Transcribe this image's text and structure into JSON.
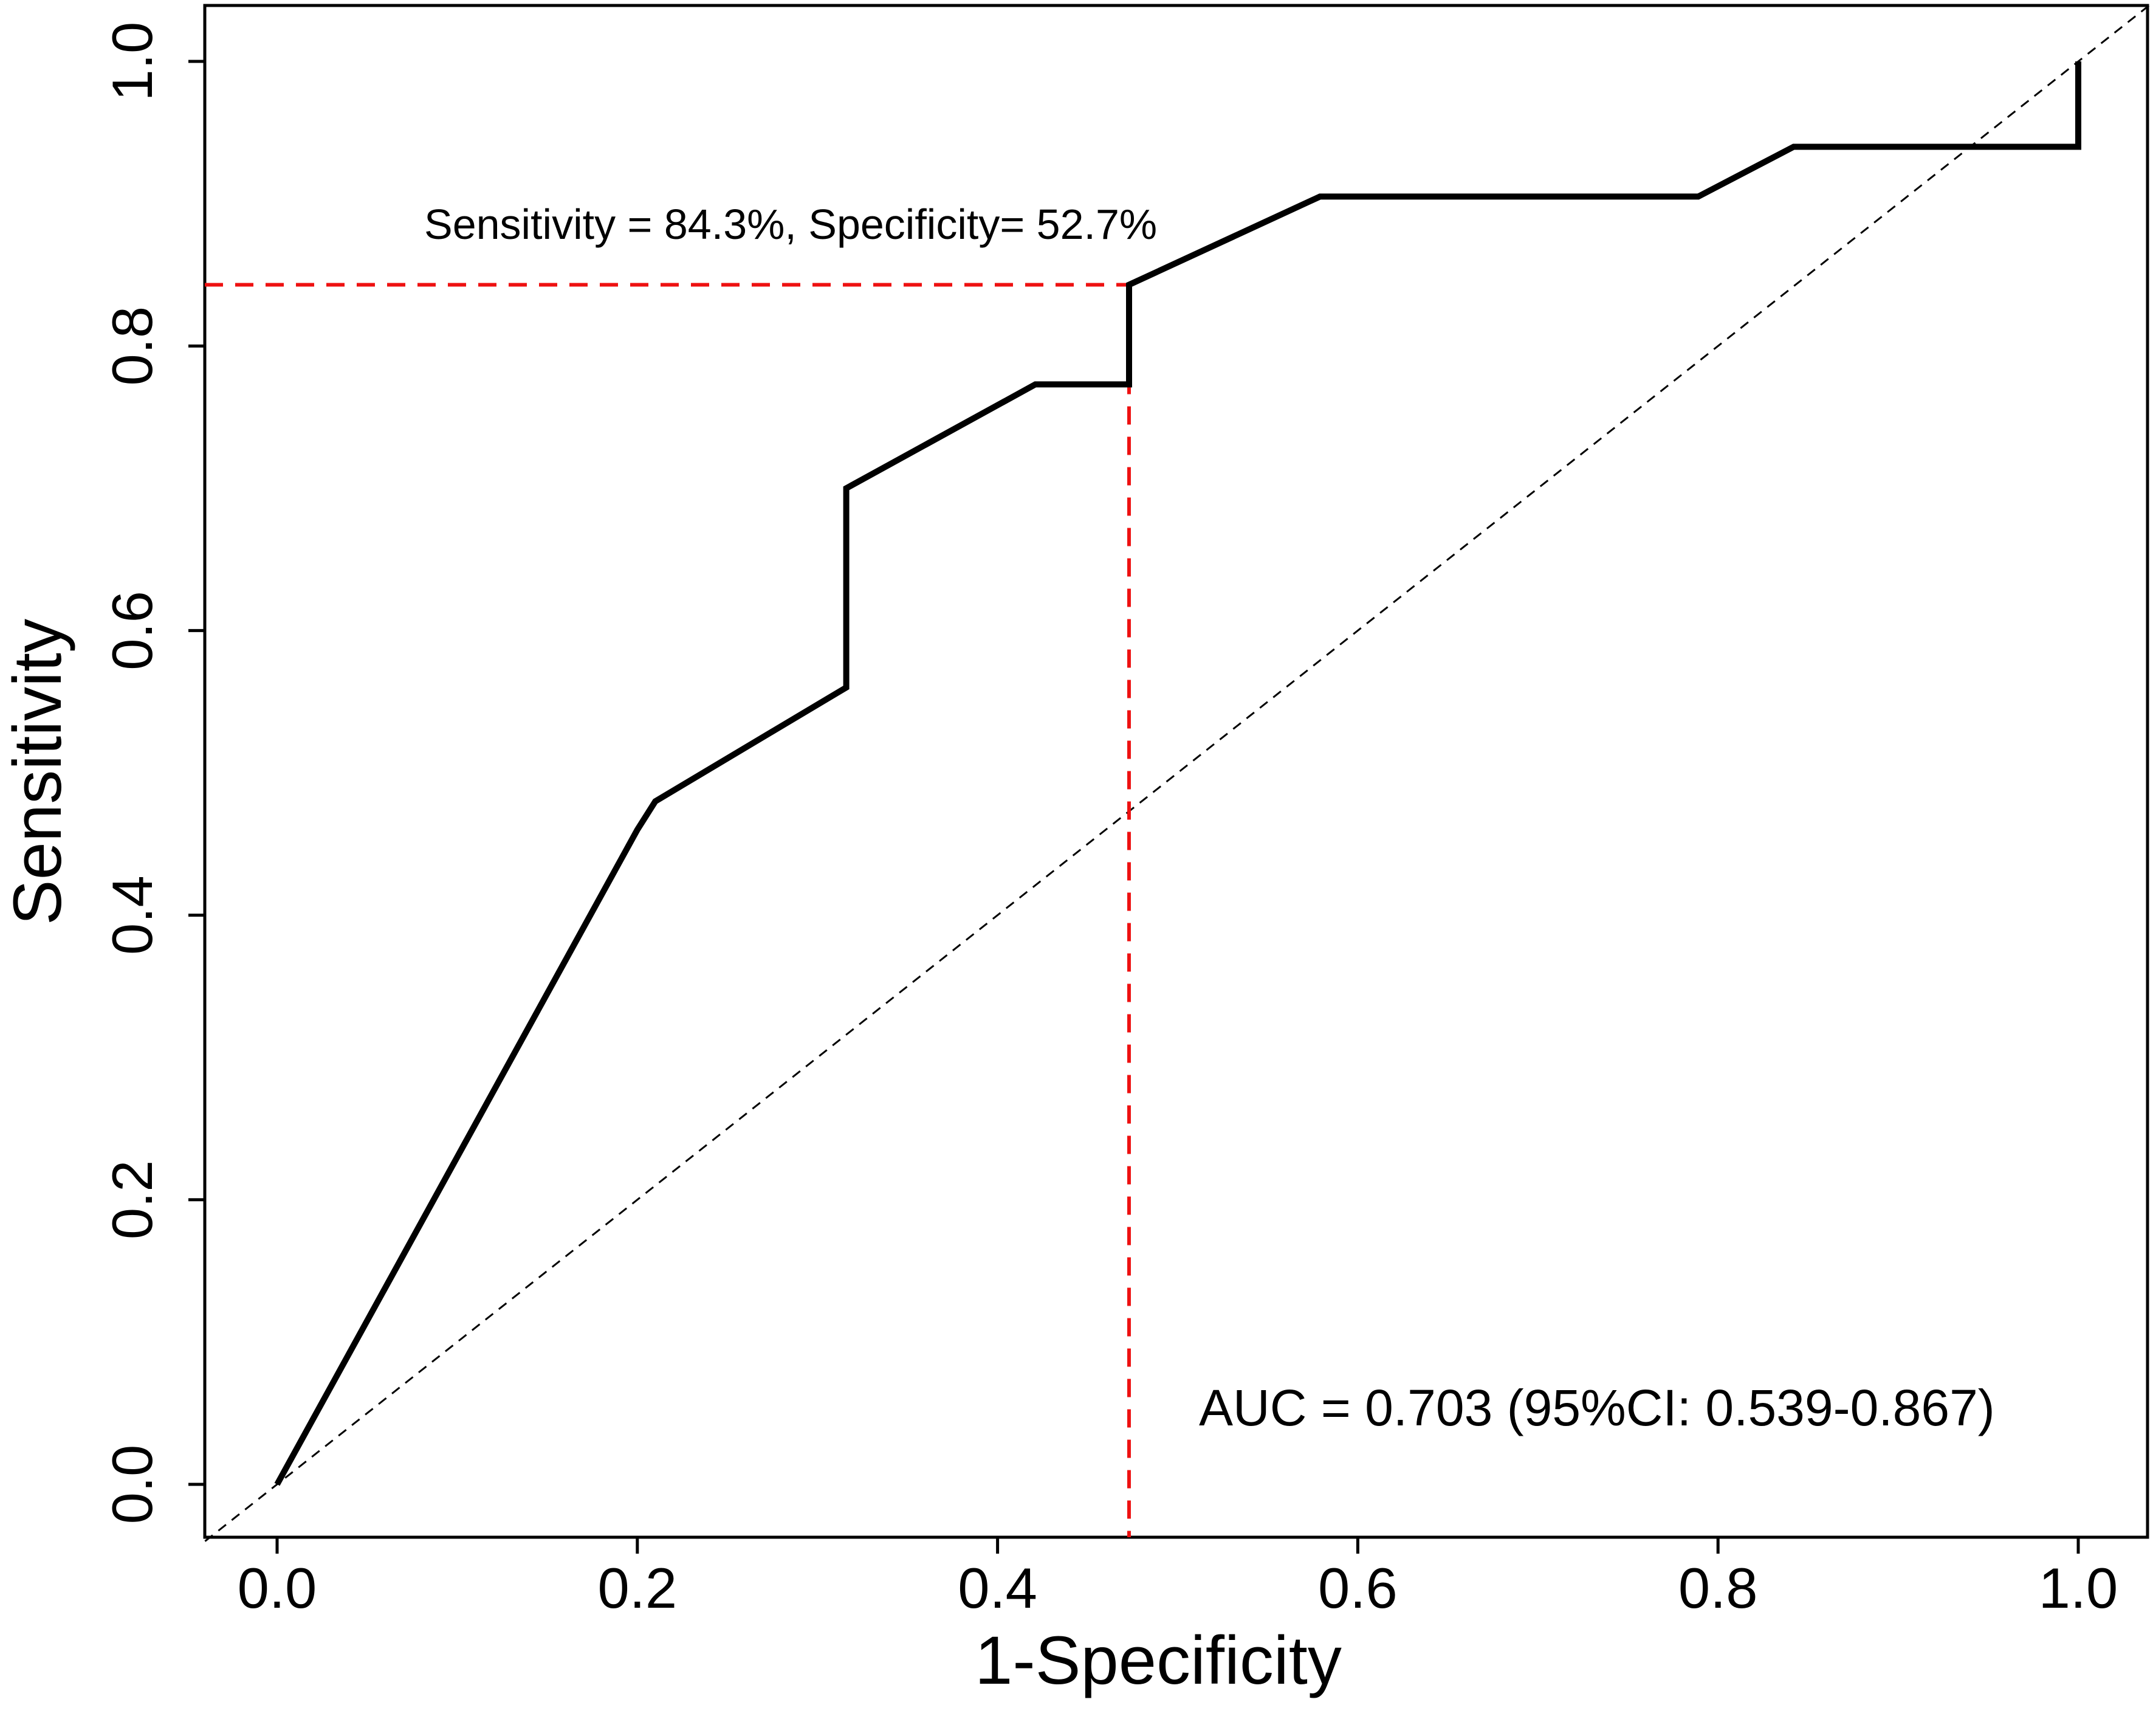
{
  "chart_data": {
    "type": "line",
    "title": "",
    "xlabel": "1-Specificity",
    "ylabel": "Sensitivity",
    "xlim": [
      -0.04,
      1.04
    ],
    "ylim": [
      -0.04,
      1.04
    ],
    "xticks": [
      0.0,
      0.2,
      0.4,
      0.6,
      0.8,
      1.0
    ],
    "yticks": [
      0.0,
      0.2,
      0.4,
      0.6,
      0.8,
      1.0
    ],
    "xtick_labels": [
      "0.0",
      "0.2",
      "0.4",
      "0.6",
      "0.8",
      "1.0"
    ],
    "ytick_labels": [
      "0.0",
      "0.2",
      "0.4",
      "0.6",
      "0.8",
      "1.0"
    ],
    "grid": false,
    "series": [
      {
        "name": "ROC curve",
        "color": "#000000",
        "style": "solid",
        "x": [
          0.0,
          0.2,
          0.21,
          0.316,
          0.316,
          0.421,
          0.473,
          0.473,
          0.579,
          0.789,
          0.842,
          1.0,
          1.0
        ],
        "y": [
          0.0,
          0.46,
          0.48,
          0.56,
          0.7,
          0.773,
          0.773,
          0.843,
          0.905,
          0.905,
          0.94,
          0.94,
          1.0
        ]
      },
      {
        "name": "reference diagonal",
        "color": "#000000",
        "style": "dashed",
        "x": [
          -0.04,
          1.04
        ],
        "y": [
          -0.04,
          1.04
        ]
      }
    ],
    "cutoff": {
      "x": 0.473,
      "y": 0.843,
      "color": "#ee1111",
      "label": "Sensitivity = 84.3%, Specificity= 52.7%"
    },
    "annotations": {
      "auc": "AUC = 0.703 (95%CI: 0.539-0.867)"
    }
  }
}
